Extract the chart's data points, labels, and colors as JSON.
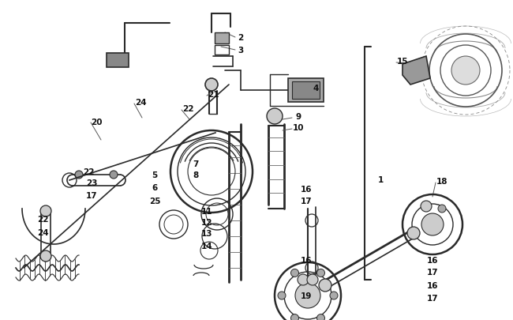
{
  "bg_color": "#ffffff",
  "line_color": "#2a2a2a",
  "label_color": "#111111",
  "fig_width": 6.5,
  "fig_height": 4.06,
  "dpi": 100,
  "num_labels": [
    [
      "2",
      305,
      48
    ],
    [
      "3",
      305,
      64
    ],
    [
      "4",
      400,
      112
    ],
    [
      "5",
      196,
      222
    ],
    [
      "6",
      196,
      238
    ],
    [
      "7",
      248,
      208
    ],
    [
      "8",
      248,
      222
    ],
    [
      "9",
      378,
      148
    ],
    [
      "10",
      378,
      162
    ],
    [
      "11",
      262,
      268
    ],
    [
      "12",
      262,
      282
    ],
    [
      "13",
      262,
      296
    ],
    [
      "14",
      262,
      312
    ],
    [
      "15",
      510,
      78
    ],
    [
      "16",
      388,
      240
    ],
    [
      "16",
      388,
      330
    ],
    [
      "16",
      548,
      330
    ],
    [
      "16",
      548,
      362
    ],
    [
      "17",
      388,
      255
    ],
    [
      "17",
      548,
      345
    ],
    [
      "17",
      548,
      378
    ],
    [
      "17",
      116,
      248
    ],
    [
      "18",
      560,
      230
    ],
    [
      "19",
      388,
      375
    ],
    [
      "20",
      122,
      155
    ],
    [
      "21",
      270,
      120
    ],
    [
      "22",
      238,
      138
    ],
    [
      "22",
      112,
      218
    ],
    [
      "22",
      54,
      278
    ],
    [
      "23",
      116,
      232
    ],
    [
      "24",
      178,
      130
    ],
    [
      "24",
      54,
      295
    ],
    [
      "25",
      196,
      255
    ],
    [
      "1",
      482,
      228
    ]
  ]
}
